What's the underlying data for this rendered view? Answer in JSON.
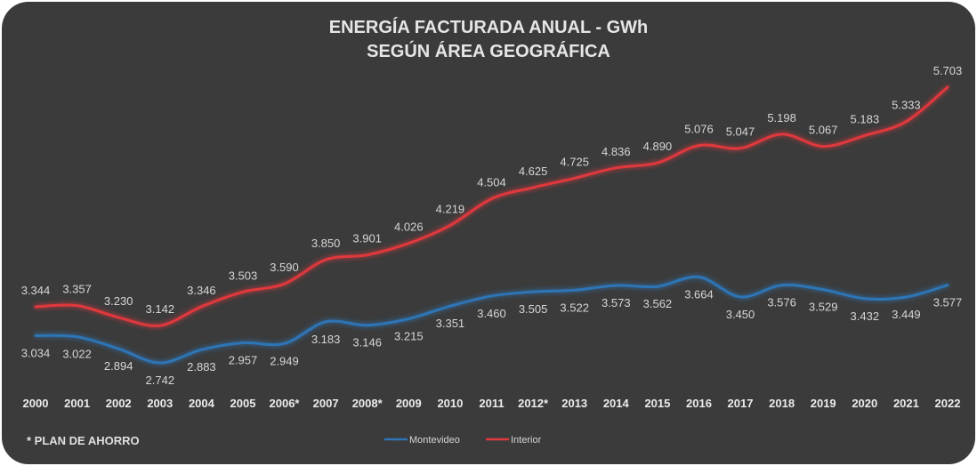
{
  "chart_data": {
    "type": "line",
    "title": "ENERGÍA FACTURADA ANUAL - GWh",
    "subtitle": "SEGÚN ÁREA GEOGRÁFICA",
    "xlabel": "",
    "ylabel": "",
    "grid": false,
    "legend_position": "bottom",
    "categories": [
      "2000",
      "2001",
      "2002",
      "2003",
      "2004",
      "2005",
      "2006*",
      "2007",
      "2008*",
      "2009",
      "2010",
      "2011",
      "2012*",
      "2013",
      "2014",
      "2015",
      "2016",
      "2017",
      "2018",
      "2019",
      "2020",
      "2021",
      "2022"
    ],
    "series": [
      {
        "name": "Montevideo",
        "color": "#2e75b6",
        "values": [
          3034,
          3022,
          2894,
          2742,
          2883,
          2957,
          2949,
          3183,
          3146,
          3215,
          3351,
          3460,
          3505,
          3522,
          3573,
          3562,
          3664,
          3450,
          3576,
          3529,
          3432,
          3449,
          3577
        ],
        "labels": [
          "3.034",
          "3.022",
          "2.894",
          "2.742",
          "2.883",
          "2.957",
          "2.949",
          "3.183",
          "3.146",
          "3.215",
          "3.351",
          "3.460",
          "3.505",
          "3.522",
          "3.573",
          "3.562",
          "3.664",
          "3.450",
          "3.576",
          "3.529",
          "3.432",
          "3.449",
          "3.577"
        ]
      },
      {
        "name": "Interior",
        "color": "#e0393e",
        "values": [
          3344,
          3357,
          3230,
          3142,
          3346,
          3503,
          3590,
          3850,
          3901,
          4026,
          4219,
          4504,
          4625,
          4725,
          4836,
          4890,
          5076,
          5047,
          5198,
          5067,
          5183,
          5333,
          5703
        ],
        "labels": [
          "3.344",
          "3.357",
          "3.230",
          "3.142",
          "3.346",
          "3.503",
          "3.590",
          "3.850",
          "3.901",
          "4.026",
          "4.219",
          "4.504",
          "4.625",
          "4.725",
          "4.836",
          "4.890",
          "5.076",
          "5.047",
          "5.198",
          "5.067",
          "5.183",
          "5.333",
          "5.703"
        ]
      }
    ]
  },
  "footnote": "* PLAN DE AHORRO"
}
